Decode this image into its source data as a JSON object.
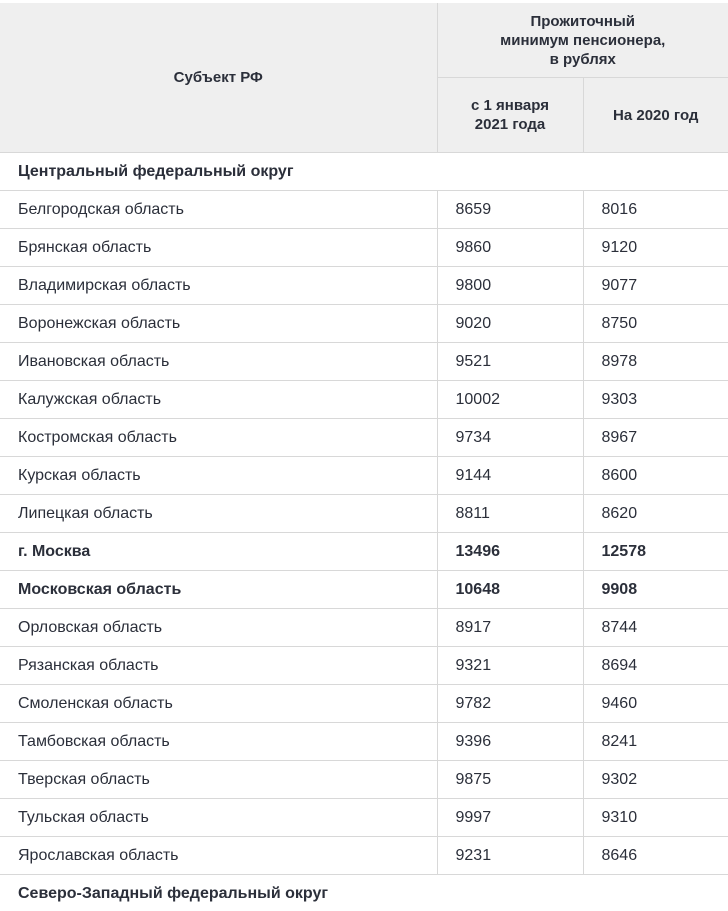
{
  "table": {
    "header": {
      "subject": "Субъект РФ",
      "group": "Прожиточный минимум пенсионера, в рублях",
      "col1": "с 1 января 2021 года",
      "col2": "На 2020 год"
    },
    "rows": [
      {
        "cells": [
          "Центральный федеральный округ"
        ],
        "bold": true
      },
      {
        "cells": [
          "Белгородская область",
          8659,
          8016
        ]
      },
      {
        "cells": [
          "Брянская область",
          9860,
          9120
        ]
      },
      {
        "cells": [
          "Владимирская область",
          9800,
          9077
        ]
      },
      {
        "cells": [
          "Воронежская область",
          9020,
          8750
        ]
      },
      {
        "cells": [
          "Ивановская область",
          9521,
          8978
        ]
      },
      {
        "cells": [
          "Калужская область",
          10002,
          9303
        ]
      },
      {
        "cells": [
          "Костромская область",
          9734,
          8967
        ]
      },
      {
        "cells": [
          "Курская область",
          9144,
          8600
        ]
      },
      {
        "cells": [
          "Липецкая область",
          8811,
          8620
        ]
      },
      {
        "cells": [
          "г. Москва",
          13496,
          12578
        ],
        "bold": true
      },
      {
        "cells": [
          "Московская область",
          10648,
          9908
        ],
        "bold": true
      },
      {
        "cells": [
          "Орловская область",
          8917,
          8744
        ]
      },
      {
        "cells": [
          "Рязанская область",
          9321,
          8694
        ]
      },
      {
        "cells": [
          "Смоленская область",
          9782,
          9460
        ]
      },
      {
        "cells": [
          "Тамбовская область",
          9396,
          8241
        ]
      },
      {
        "cells": [
          "Тверская область",
          9875,
          9302
        ]
      },
      {
        "cells": [
          "Тульская область",
          9997,
          9310
        ]
      },
      {
        "cells": [
          "Ярославская область",
          9231,
          8646
        ]
      },
      {
        "cells": [
          "Северо-Западный федеральный округ"
        ],
        "bold": true
      }
    ]
  }
}
